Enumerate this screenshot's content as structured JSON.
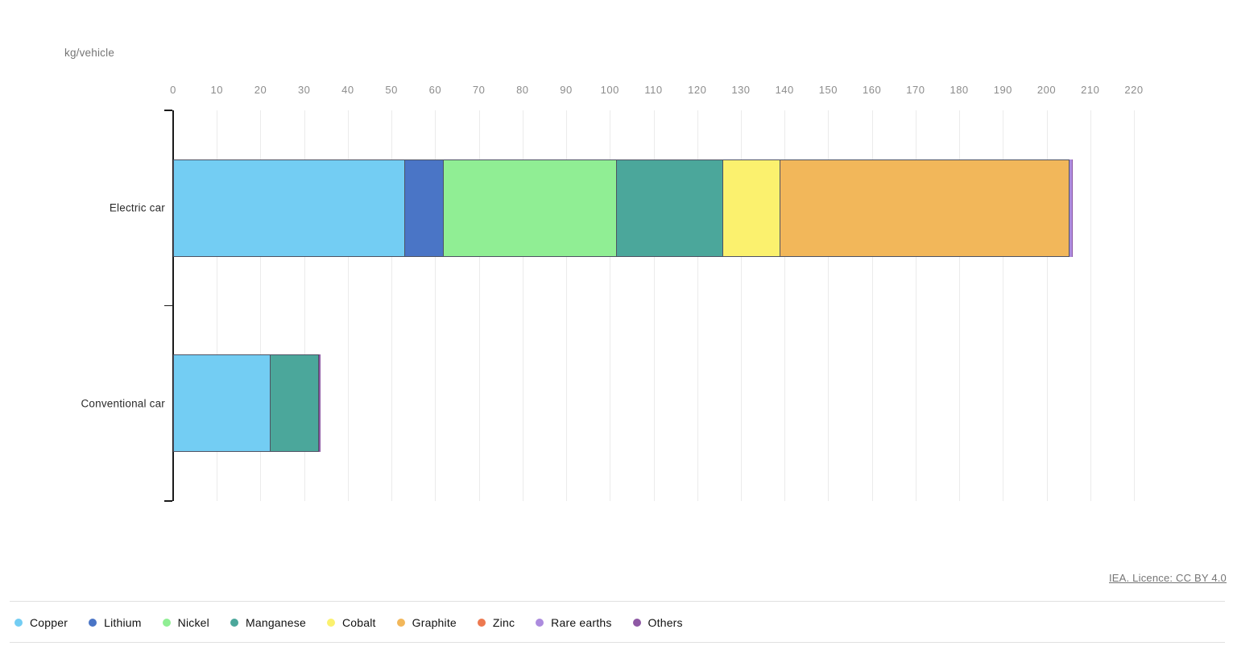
{
  "header": {
    "unit_label": "kg/vehicle"
  },
  "footer": {
    "source_link": "IEA. Licence: CC BY 4.0"
  },
  "chart_data": {
    "type": "bar",
    "orientation": "horizontal",
    "stacked": true,
    "title": "",
    "unit": "kg/vehicle",
    "categories": [
      "Electric car",
      "Conventional car"
    ],
    "series": [
      {
        "name": "Copper",
        "color": "#73CDF3",
        "values": [
          53.2,
          22.3
        ]
      },
      {
        "name": "Lithium",
        "color": "#4A75C6",
        "values": [
          8.9,
          0
        ]
      },
      {
        "name": "Nickel",
        "color": "#90EE94",
        "values": [
          39.9,
          0
        ]
      },
      {
        "name": "Manganese",
        "color": "#4BA79B",
        "values": [
          24.5,
          11.2
        ]
      },
      {
        "name": "Cobalt",
        "color": "#FBF16E",
        "values": [
          13.3,
          0
        ]
      },
      {
        "name": "Graphite",
        "color": "#F2B75A",
        "values": [
          66.3,
          0
        ]
      },
      {
        "name": "Zinc",
        "color": "#ED7950",
        "values": [
          0.1,
          0.1
        ]
      },
      {
        "name": "Rare earths",
        "color": "#AC8BDE",
        "values": [
          0.5,
          0
        ]
      },
      {
        "name": "Others",
        "color": "#8E58A4",
        "values": [
          0.3,
          0.3
        ]
      }
    ],
    "xlim": [
      0,
      220
    ],
    "x_ticks": [
      0,
      10,
      20,
      30,
      40,
      50,
      60,
      70,
      80,
      90,
      100,
      110,
      120,
      130,
      140,
      150,
      160,
      170,
      180,
      190,
      200,
      210,
      220
    ],
    "grid": true,
    "legend_position": "bottom"
  }
}
